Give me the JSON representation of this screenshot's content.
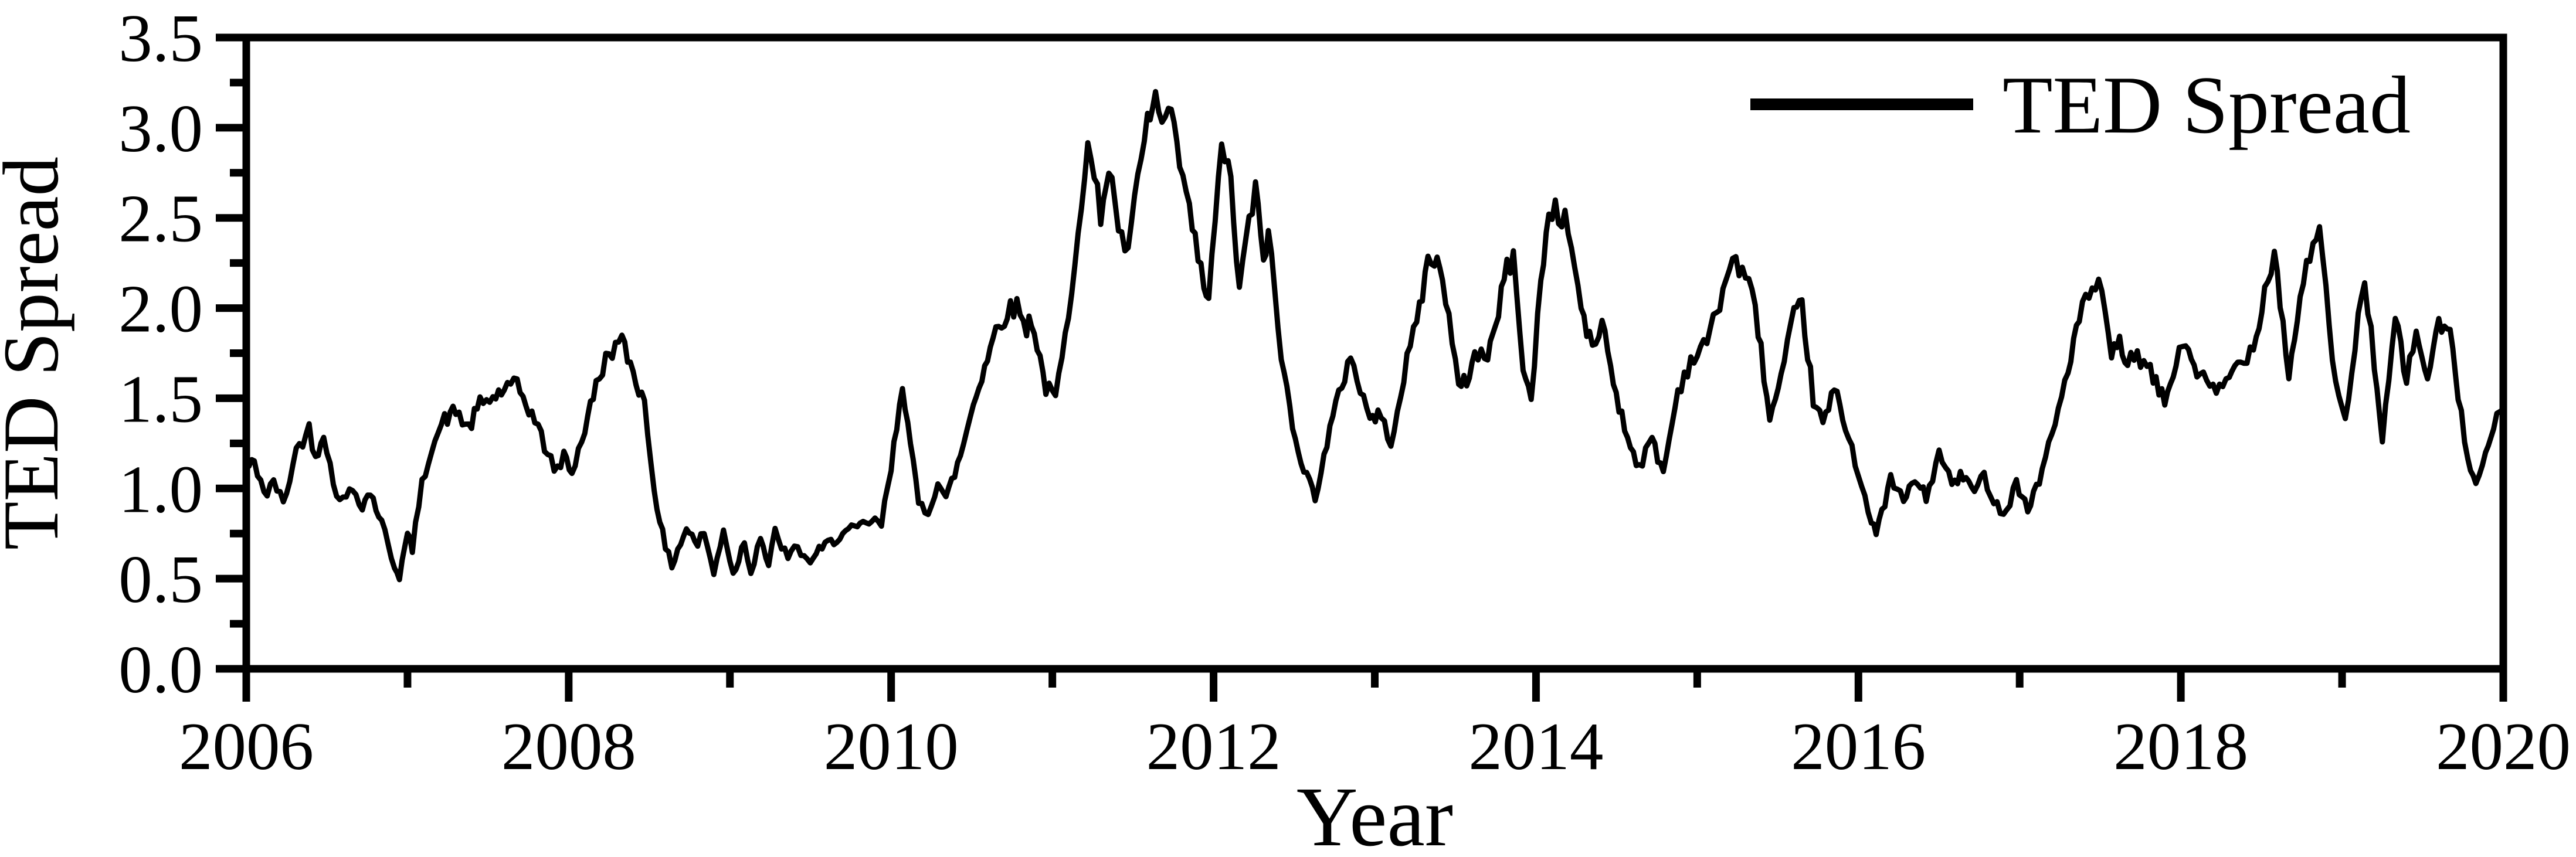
{
  "figure": {
    "kind": "scientific line chart",
    "background_color": "#ffffff",
    "ink_color": "#000000"
  },
  "chart_data": {
    "type": "line",
    "title": "",
    "xlabel": "Year",
    "ylabel": "TED Spread",
    "legend": {
      "position": "top-right-inside",
      "entries": [
        {
          "label": "TED Spread",
          "color": "#000000",
          "marker": "line"
        }
      ]
    },
    "xlim": [
      2006,
      2020
    ],
    "ylim": [
      0.0,
      3.5
    ],
    "grid": "off",
    "x_major_ticks": [
      2006,
      2008,
      2010,
      2012,
      2014,
      2016,
      2018,
      2020
    ],
    "x_major_tick_labels": [
      "2006",
      "2008",
      "2010",
      "2012",
      "2014",
      "2016",
      "2018",
      "2020"
    ],
    "x_minor_ticks": [
      2007,
      2009,
      2011,
      2013,
      2015,
      2017,
      2019
    ],
    "y_major_ticks": [
      0.0,
      0.5,
      1.0,
      1.5,
      2.0,
      2.5,
      3.0,
      3.5
    ],
    "y_major_tick_labels": [
      "0.0",
      "0.5",
      "1.0",
      "1.5",
      "2.0",
      "2.5",
      "3.0",
      "3.5"
    ],
    "y_minor_ticks": [
      0.25,
      0.75,
      1.25,
      1.75,
      2.25,
      2.75,
      3.25
    ],
    "series": [
      {
        "name": "TED Spread",
        "color": "#000000",
        "line_width": 9,
        "noise_band": 0.05,
        "points": [
          [
            2006.0,
            1.12
          ],
          [
            2006.05,
            1.14
          ],
          [
            2006.13,
            0.95
          ],
          [
            2006.17,
            1.05
          ],
          [
            2006.23,
            0.91
          ],
          [
            2006.31,
            1.21
          ],
          [
            2006.39,
            1.33
          ],
          [
            2006.43,
            1.17
          ],
          [
            2006.48,
            1.32
          ],
          [
            2006.54,
            1.02
          ],
          [
            2006.6,
            0.93
          ],
          [
            2006.66,
            1.0
          ],
          [
            2006.72,
            0.91
          ],
          [
            2006.77,
            0.98
          ],
          [
            2006.84,
            0.81
          ],
          [
            2006.92,
            0.57
          ],
          [
            2006.95,
            0.52
          ],
          [
            2007.0,
            0.74
          ],
          [
            2007.03,
            0.67
          ],
          [
            2007.09,
            1.02
          ],
          [
            2007.15,
            1.24
          ],
          [
            2007.23,
            1.38
          ],
          [
            2007.3,
            1.43
          ],
          [
            2007.38,
            1.33
          ],
          [
            2007.45,
            1.47
          ],
          [
            2007.53,
            1.5
          ],
          [
            2007.6,
            1.55
          ],
          [
            2007.68,
            1.57
          ],
          [
            2007.79,
            1.38
          ],
          [
            2007.87,
            1.19
          ],
          [
            2007.93,
            1.09
          ],
          [
            2007.97,
            1.19
          ],
          [
            2008.02,
            1.09
          ],
          [
            2008.1,
            1.33
          ],
          [
            2008.17,
            1.57
          ],
          [
            2008.25,
            1.76
          ],
          [
            2008.33,
            1.81
          ],
          [
            2008.4,
            1.65
          ],
          [
            2008.47,
            1.47
          ],
          [
            2008.53,
            1.0
          ],
          [
            2008.6,
            0.66
          ],
          [
            2008.64,
            0.58
          ],
          [
            2008.73,
            0.78
          ],
          [
            2008.8,
            0.69
          ],
          [
            2008.84,
            0.76
          ],
          [
            2008.9,
            0.52
          ],
          [
            2008.96,
            0.78
          ],
          [
            2009.02,
            0.52
          ],
          [
            2009.09,
            0.71
          ],
          [
            2009.13,
            0.54
          ],
          [
            2009.19,
            0.74
          ],
          [
            2009.24,
            0.56
          ],
          [
            2009.28,
            0.76
          ],
          [
            2009.36,
            0.61
          ],
          [
            2009.42,
            0.68
          ],
          [
            2009.48,
            0.59
          ],
          [
            2009.59,
            0.68
          ],
          [
            2009.7,
            0.75
          ],
          [
            2009.79,
            0.78
          ],
          [
            2009.88,
            0.82
          ],
          [
            2009.94,
            0.8
          ],
          [
            2010.0,
            1.11
          ],
          [
            2010.07,
            1.6
          ],
          [
            2010.12,
            1.23
          ],
          [
            2010.17,
            0.92
          ],
          [
            2010.23,
            0.87
          ],
          [
            2010.29,
            1.04
          ],
          [
            2010.34,
            0.94
          ],
          [
            2010.43,
            1.18
          ],
          [
            2010.51,
            1.47
          ],
          [
            2010.58,
            1.68
          ],
          [
            2010.65,
            1.88
          ],
          [
            2010.72,
            1.98
          ],
          [
            2010.78,
            2.01
          ],
          [
            2010.84,
            1.89
          ],
          [
            2010.87,
            1.95
          ],
          [
            2010.96,
            1.56
          ],
          [
            2011.02,
            1.5
          ],
          [
            2011.1,
            1.94
          ],
          [
            2011.16,
            2.47
          ],
          [
            2011.22,
            2.89
          ],
          [
            2011.3,
            2.53
          ],
          [
            2011.35,
            2.78
          ],
          [
            2011.45,
            2.26
          ],
          [
            2011.53,
            2.68
          ],
          [
            2011.59,
            3.03
          ],
          [
            2011.64,
            3.16
          ],
          [
            2011.68,
            3.0
          ],
          [
            2011.72,
            3.1
          ],
          [
            2011.79,
            2.81
          ],
          [
            2011.85,
            2.53
          ],
          [
            2011.94,
            2.12
          ],
          [
            2011.97,
            2.05
          ],
          [
            2012.05,
            2.88
          ],
          [
            2012.09,
            2.85
          ],
          [
            2012.16,
            2.1
          ],
          [
            2012.22,
            2.48
          ],
          [
            2012.26,
            2.65
          ],
          [
            2012.31,
            2.27
          ],
          [
            2012.34,
            2.43
          ],
          [
            2012.42,
            1.72
          ],
          [
            2012.49,
            1.37
          ],
          [
            2012.56,
            1.1
          ],
          [
            2012.63,
            0.96
          ],
          [
            2012.74,
            1.39
          ],
          [
            2012.85,
            1.75
          ],
          [
            2012.91,
            1.55
          ],
          [
            2012.97,
            1.39
          ],
          [
            2013.02,
            1.41
          ],
          [
            2013.1,
            1.27
          ],
          [
            2013.2,
            1.7
          ],
          [
            2013.26,
            1.94
          ],
          [
            2013.33,
            2.25
          ],
          [
            2013.37,
            2.27
          ],
          [
            2013.42,
            2.2
          ],
          [
            2013.52,
            1.55
          ],
          [
            2013.57,
            1.6
          ],
          [
            2013.62,
            1.74
          ],
          [
            2013.7,
            1.75
          ],
          [
            2013.75,
            1.9
          ],
          [
            2013.82,
            2.24
          ],
          [
            2013.86,
            2.26
          ],
          [
            2013.92,
            1.7
          ],
          [
            2013.97,
            1.47
          ],
          [
            2014.03,
            2.16
          ],
          [
            2014.08,
            2.52
          ],
          [
            2014.12,
            2.55
          ],
          [
            2014.2,
            2.45
          ],
          [
            2014.28,
            2.0
          ],
          [
            2014.35,
            1.76
          ],
          [
            2014.41,
            1.93
          ],
          [
            2014.48,
            1.6
          ],
          [
            2014.55,
            1.33
          ],
          [
            2014.64,
            1.12
          ],
          [
            2014.72,
            1.27
          ],
          [
            2014.79,
            1.09
          ],
          [
            2014.88,
            1.54
          ],
          [
            2014.96,
            1.71
          ],
          [
            2015.04,
            1.78
          ],
          [
            2015.1,
            1.92
          ],
          [
            2015.16,
            2.1
          ],
          [
            2015.22,
            2.28
          ],
          [
            2015.28,
            2.2
          ],
          [
            2015.36,
            2.02
          ],
          [
            2015.45,
            1.38
          ],
          [
            2015.52,
            1.6
          ],
          [
            2015.6,
            1.95
          ],
          [
            2015.65,
            2.01
          ],
          [
            2015.72,
            1.5
          ],
          [
            2015.78,
            1.35
          ],
          [
            2015.85,
            1.55
          ],
          [
            2015.92,
            1.35
          ],
          [
            2016.02,
            1.03
          ],
          [
            2016.08,
            0.8
          ],
          [
            2016.11,
            0.75
          ],
          [
            2016.2,
            1.05
          ],
          [
            2016.28,
            0.93
          ],
          [
            2016.35,
            1.05
          ],
          [
            2016.42,
            0.95
          ],
          [
            2016.5,
            1.19
          ],
          [
            2016.58,
            1.03
          ],
          [
            2016.65,
            1.07
          ],
          [
            2016.72,
            0.98
          ],
          [
            2016.78,
            1.07
          ],
          [
            2016.86,
            0.9
          ],
          [
            2016.92,
            0.88
          ],
          [
            2016.98,
            1.04
          ],
          [
            2017.05,
            0.88
          ],
          [
            2017.14,
            1.1
          ],
          [
            2017.22,
            1.36
          ],
          [
            2017.3,
            1.67
          ],
          [
            2017.37,
            1.95
          ],
          [
            2017.45,
            2.1
          ],
          [
            2017.49,
            2.14
          ],
          [
            2017.57,
            1.74
          ],
          [
            2017.62,
            1.8
          ],
          [
            2017.67,
            1.7
          ],
          [
            2017.75,
            1.72
          ],
          [
            2017.81,
            1.64
          ],
          [
            2017.9,
            1.48
          ],
          [
            2017.97,
            1.7
          ],
          [
            2018.03,
            1.81
          ],
          [
            2018.1,
            1.65
          ],
          [
            2018.22,
            1.52
          ],
          [
            2018.3,
            1.62
          ],
          [
            2018.37,
            1.71
          ],
          [
            2018.45,
            1.78
          ],
          [
            2018.52,
            2.1
          ],
          [
            2018.58,
            2.32
          ],
          [
            2018.67,
            1.63
          ],
          [
            2018.74,
            2.05
          ],
          [
            2018.82,
            2.4
          ],
          [
            2018.86,
            2.4
          ],
          [
            2018.96,
            1.58
          ],
          [
            2019.02,
            1.35
          ],
          [
            2019.08,
            1.8
          ],
          [
            2019.14,
            2.18
          ],
          [
            2019.2,
            1.7
          ],
          [
            2019.25,
            1.25
          ],
          [
            2019.33,
            1.94
          ],
          [
            2019.4,
            1.61
          ],
          [
            2019.46,
            1.85
          ],
          [
            2019.53,
            1.62
          ],
          [
            2019.6,
            1.9
          ],
          [
            2019.67,
            1.88
          ],
          [
            2019.72,
            1.5
          ],
          [
            2019.78,
            1.17
          ],
          [
            2019.83,
            1.06
          ],
          [
            2019.89,
            1.18
          ],
          [
            2019.94,
            1.34
          ],
          [
            2020.0,
            1.44
          ]
        ]
      }
    ]
  }
}
